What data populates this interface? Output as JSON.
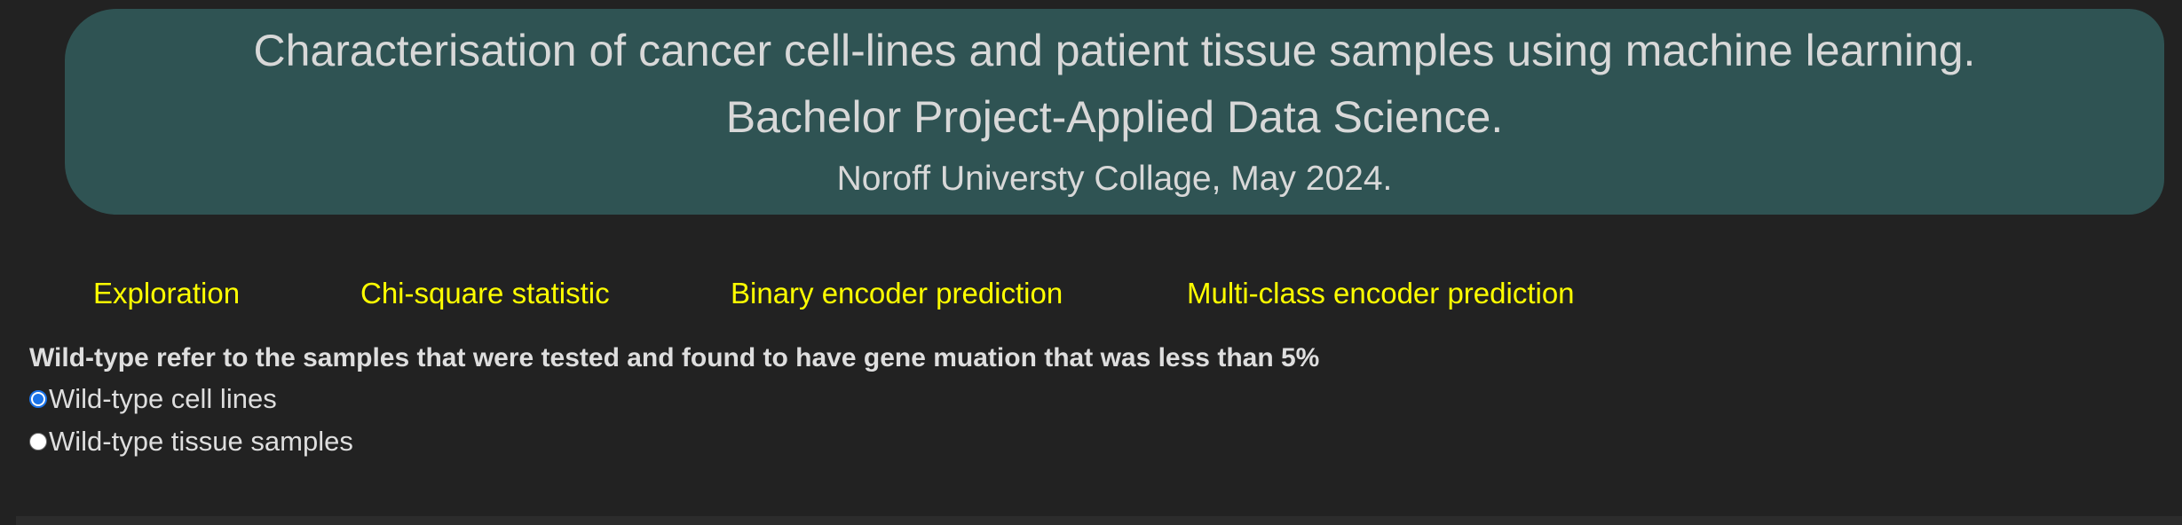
{
  "header": {
    "title": "Characterisation of cancer cell-lines and patient tissue samples using machine learning.",
    "subtitle": "Bachelor Project-Applied Data Science.",
    "affiliation": "Noroff Universty Collage, May 2024."
  },
  "nav": {
    "items": [
      {
        "label": "Exploration"
      },
      {
        "label": "Chi-square statistic"
      },
      {
        "label": "Binary encoder prediction"
      },
      {
        "label": "Multi-class encoder prediction"
      }
    ]
  },
  "info": {
    "text": "Wild-type refer to the samples that were tested and found to have gene muation that was less than 5%"
  },
  "radio": {
    "options": [
      {
        "label": "Wild-type cell lines",
        "checked": true
      },
      {
        "label": "Wild-type tissue samples",
        "checked": false
      }
    ]
  },
  "colors": {
    "background": "#222222",
    "header_bg": "#2f5353",
    "nav_link": "#ffff00",
    "radio_accent": "#1a73e8"
  }
}
